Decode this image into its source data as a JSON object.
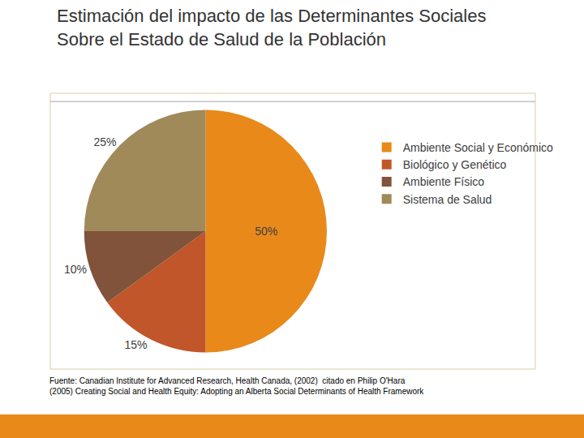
{
  "chart_data": {
    "type": "pie",
    "title": "Estimación del impacto de las Determinantes Sociales\nSobre el Estado de Salud de la Población",
    "categories": [
      "Ambiente Social y Económico",
      "Biológico y Genético",
      "Ambiente Físico",
      "Sistema de Salud"
    ],
    "values": [
      50,
      15,
      10,
      25
    ],
    "value_labels": [
      "50%",
      "15%",
      "10%",
      "25%"
    ],
    "colors": [
      "#E8891A",
      "#C0562A",
      "#80533A",
      "#A08A5A"
    ],
    "data_labels": true,
    "legend": "right",
    "annotations": [
      "Fuente: Canadian Institute for Advanced Research, Health Canada, (2002)  citado en Philip O'Hara\n(2005) Creating Social and Health Equity: Adopting an Alberta Social Determinants of Health Framework"
    ]
  }
}
